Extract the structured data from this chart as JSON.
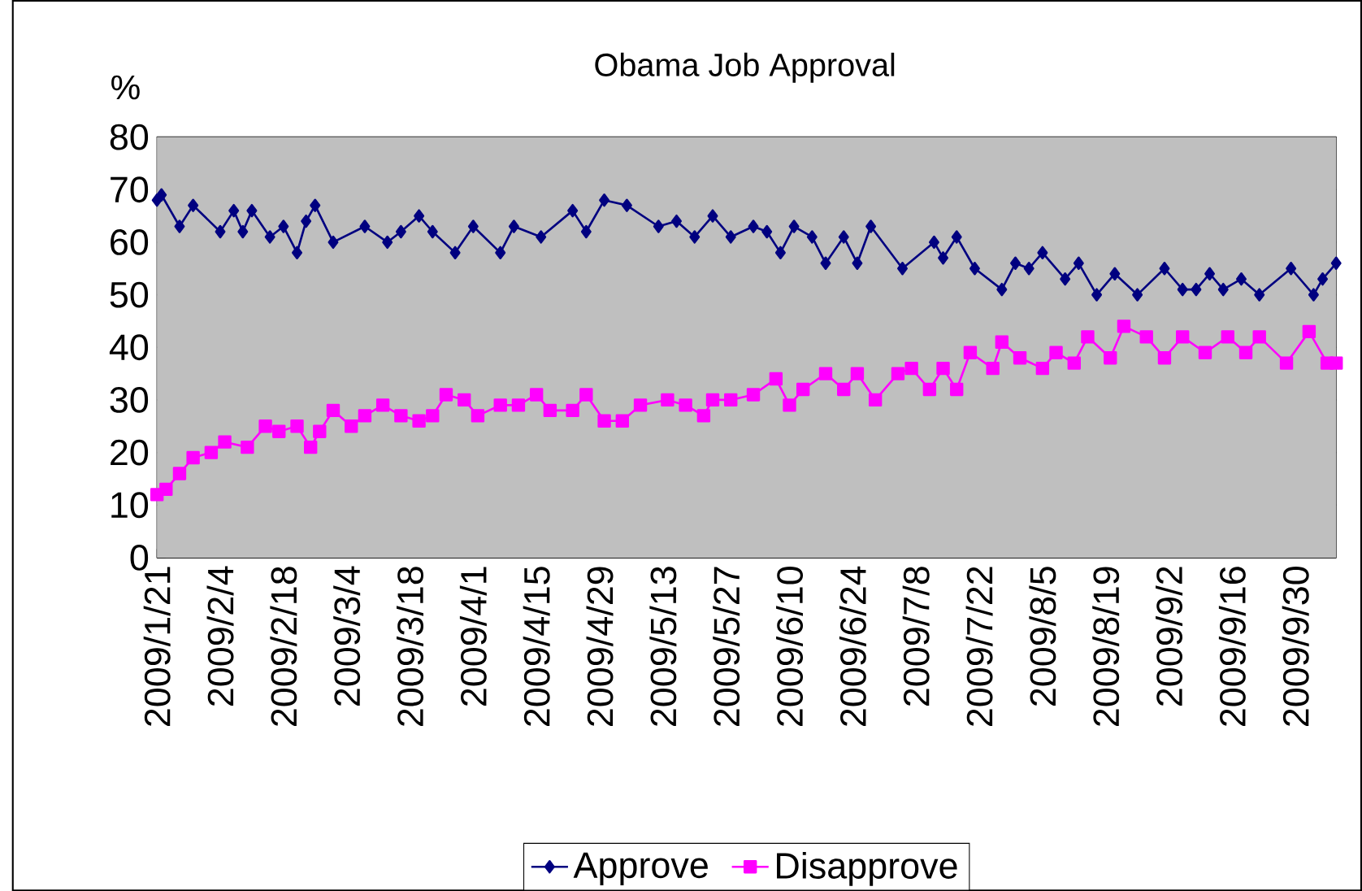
{
  "chart_data": {
    "type": "line",
    "title": "Obama Job Approval",
    "ylabel": "%",
    "xlim": [
      "2009-01-21",
      "2009-10-09"
    ],
    "xticks": [
      {
        "value": "2009-01-21",
        "label": "2009/1/21"
      },
      {
        "value": "2009-02-04",
        "label": "2009/2/4"
      },
      {
        "value": "2009-02-18",
        "label": "2009/2/18"
      },
      {
        "value": "2009-03-04",
        "label": "2009/3/4"
      },
      {
        "value": "2009-03-18",
        "label": "2009/3/18"
      },
      {
        "value": "2009-04-01",
        "label": "2009/4/1"
      },
      {
        "value": "2009-04-15",
        "label": "2009/4/15"
      },
      {
        "value": "2009-04-29",
        "label": "2009/4/29"
      },
      {
        "value": "2009-05-13",
        "label": "2009/5/13"
      },
      {
        "value": "2009-05-27",
        "label": "2009/5/27"
      },
      {
        "value": "2009-06-10",
        "label": "2009/6/10"
      },
      {
        "value": "2009-06-24",
        "label": "2009/6/24"
      },
      {
        "value": "2009-07-08",
        "label": "2009/7/8"
      },
      {
        "value": "2009-07-22",
        "label": "2009/7/22"
      },
      {
        "value": "2009-08-05",
        "label": "2009/8/5"
      },
      {
        "value": "2009-08-19",
        "label": "2009/8/19"
      },
      {
        "value": "2009-09-02",
        "label": "2009/9/2"
      },
      {
        "value": "2009-09-16",
        "label": "2009/9/16"
      },
      {
        "value": "2009-09-30",
        "label": "2009/9/30"
      }
    ],
    "ylim": [
      0,
      80
    ],
    "yticks": [
      0,
      10,
      20,
      30,
      40,
      50,
      60,
      70,
      80
    ],
    "grid": "y",
    "legend": "bottom",
    "series": [
      {
        "name": "Approve",
        "color": "#000080",
        "marker": "diamond",
        "x": [
          "2009-01-21",
          "2009-01-22",
          "2009-01-26",
          "2009-01-29",
          "2009-02-04",
          "2009-02-07",
          "2009-02-09",
          "2009-02-11",
          "2009-02-15",
          "2009-02-18",
          "2009-02-21",
          "2009-02-23",
          "2009-02-25",
          "2009-03-01",
          "2009-03-08",
          "2009-03-13",
          "2009-03-16",
          "2009-03-20",
          "2009-03-23",
          "2009-03-28",
          "2009-04-01",
          "2009-04-07",
          "2009-04-10",
          "2009-04-16",
          "2009-04-23",
          "2009-04-26",
          "2009-04-30",
          "2009-05-05",
          "2009-05-12",
          "2009-05-16",
          "2009-05-20",
          "2009-05-24",
          "2009-05-28",
          "2009-06-02",
          "2009-06-05",
          "2009-06-08",
          "2009-06-11",
          "2009-06-15",
          "2009-06-18",
          "2009-06-22",
          "2009-06-25",
          "2009-06-28",
          "2009-07-05",
          "2009-07-12",
          "2009-07-14",
          "2009-07-17",
          "2009-07-21",
          "2009-07-27",
          "2009-07-30",
          "2009-08-02",
          "2009-08-05",
          "2009-08-10",
          "2009-08-13",
          "2009-08-17",
          "2009-08-21",
          "2009-08-26",
          "2009-09-01",
          "2009-09-05",
          "2009-09-08",
          "2009-09-11",
          "2009-09-14",
          "2009-09-18",
          "2009-09-22",
          "2009-09-29",
          "2009-10-04",
          "2009-10-06",
          "2009-10-09"
        ],
        "values": [
          68,
          69,
          63,
          67,
          62,
          66,
          62,
          66,
          61,
          63,
          58,
          64,
          67,
          60,
          63,
          60,
          62,
          65,
          62,
          58,
          63,
          58,
          63,
          61,
          66,
          62,
          68,
          67,
          63,
          64,
          61,
          65,
          61,
          63,
          62,
          58,
          63,
          61,
          56,
          61,
          56,
          63,
          55,
          60,
          57,
          61,
          55,
          51,
          56,
          55,
          58,
          53,
          56,
          50,
          54,
          50,
          55,
          51,
          51,
          54,
          51,
          53,
          50,
          55,
          50,
          53,
          56
        ]
      },
      {
        "name": "Disapprove",
        "color": "#ff00ff",
        "marker": "square",
        "x": [
          "2009-01-21",
          "2009-01-23",
          "2009-01-26",
          "2009-01-29",
          "2009-02-02",
          "2009-02-05",
          "2009-02-10",
          "2009-02-14",
          "2009-02-17",
          "2009-02-21",
          "2009-02-24",
          "2009-02-26",
          "2009-03-01",
          "2009-03-05",
          "2009-03-08",
          "2009-03-12",
          "2009-03-16",
          "2009-03-20",
          "2009-03-23",
          "2009-03-26",
          "2009-03-30",
          "2009-04-02",
          "2009-04-07",
          "2009-04-11",
          "2009-04-15",
          "2009-04-18",
          "2009-04-23",
          "2009-04-26",
          "2009-04-30",
          "2009-05-04",
          "2009-05-08",
          "2009-05-14",
          "2009-05-18",
          "2009-05-22",
          "2009-05-24",
          "2009-05-28",
          "2009-06-02",
          "2009-06-07",
          "2009-06-10",
          "2009-06-13",
          "2009-06-18",
          "2009-06-22",
          "2009-06-25",
          "2009-06-29",
          "2009-07-04",
          "2009-07-07",
          "2009-07-11",
          "2009-07-14",
          "2009-07-17",
          "2009-07-20",
          "2009-07-25",
          "2009-07-27",
          "2009-07-31",
          "2009-08-05",
          "2009-08-08",
          "2009-08-12",
          "2009-08-15",
          "2009-08-20",
          "2009-08-23",
          "2009-08-28",
          "2009-09-01",
          "2009-09-05",
          "2009-09-10",
          "2009-09-15",
          "2009-09-19",
          "2009-09-22",
          "2009-09-28",
          "2009-10-03",
          "2009-10-07",
          "2009-10-09"
        ],
        "values": [
          12,
          13,
          16,
          19,
          20,
          22,
          21,
          25,
          24,
          25,
          21,
          24,
          28,
          25,
          27,
          29,
          27,
          26,
          27,
          31,
          30,
          27,
          29,
          29,
          31,
          28,
          28,
          31,
          26,
          26,
          29,
          30,
          29,
          27,
          30,
          30,
          31,
          34,
          29,
          32,
          35,
          32,
          35,
          30,
          35,
          36,
          32,
          36,
          32,
          39,
          36,
          41,
          38,
          36,
          39,
          37,
          42,
          38,
          44,
          42,
          38,
          42,
          39,
          42,
          39,
          42,
          37,
          43,
          37,
          37
        ]
      }
    ]
  }
}
